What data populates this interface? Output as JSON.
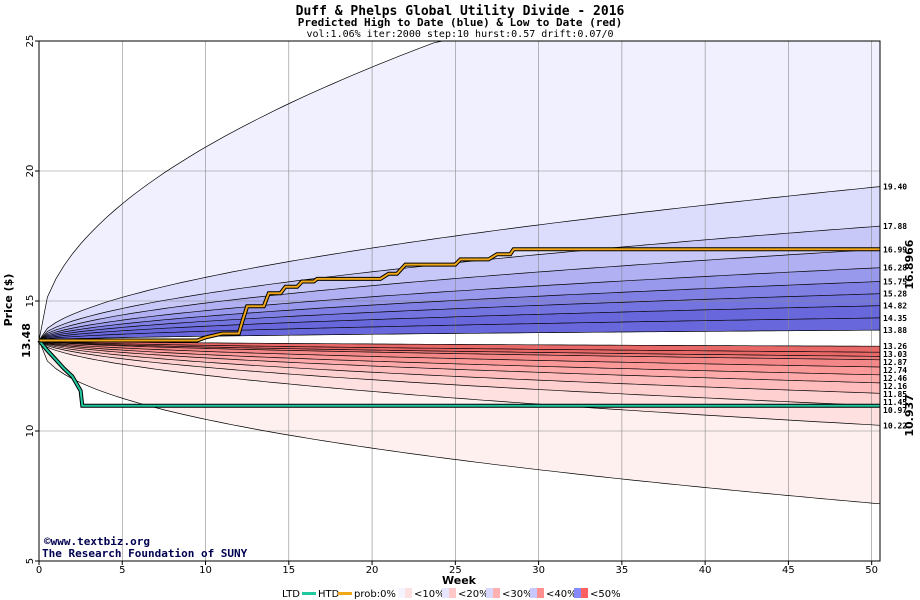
{
  "chart_data": {
    "type": "area",
    "title": "Duff & Phelps Global Utility Divide - 2016",
    "subtitle": "Predicted High to Date (blue) &  Low to Date (red)",
    "params": "vol:1.06% iter:2000 step:10 hurst:0.57 drift:0.07/0",
    "xlabel": "Week",
    "ylabel": "Price ($)",
    "xlim": [
      0,
      50.5
    ],
    "ylim": [
      5,
      25
    ],
    "x_ticks": [
      "0",
      "5",
      "10",
      "15",
      "20",
      "25",
      "30",
      "35",
      "40",
      "45",
      "50"
    ],
    "y_ticks": [
      "5",
      "10",
      "15",
      "20",
      "25"
    ],
    "start_price": 13.48,
    "start_label": "13.48",
    "high_series": [
      {
        "value": 19.4,
        "label": "19.40"
      },
      {
        "value": 17.88,
        "label": "17.88"
      },
      {
        "value": 16.99,
        "label": "16.99"
      },
      {
        "value": 16.28,
        "label": "16.28"
      },
      {
        "value": 15.75,
        "label": "15.75"
      },
      {
        "value": 15.28,
        "label": "15.28"
      },
      {
        "value": 14.82,
        "label": "14.82"
      },
      {
        "value": 14.35,
        "label": "14.35"
      },
      {
        "value": 13.88,
        "label": "13.88"
      }
    ],
    "low_series": [
      {
        "value": 13.26,
        "label": "13.26"
      },
      {
        "value": 13.03,
        "label": "13.03"
      },
      {
        "value": 12.87,
        "label": "12.87"
      },
      {
        "value": 12.74,
        "label": "12.74"
      },
      {
        "value": 12.46,
        "label": "12.46"
      },
      {
        "value": 12.16,
        "label": "12.16"
      },
      {
        "value": 11.85,
        "label": "11.85"
      },
      {
        "value": 11.45,
        "label": "11.45"
      },
      {
        "value": 10.97,
        "label": "10.97"
      },
      {
        "value": 10.22,
        "label": "10.22"
      }
    ],
    "outer_high": {
      "end": 25,
      "reach_week": 24
    },
    "outer_low": {
      "end": 7.2
    },
    "htd_path": [
      [
        0,
        13.48
      ],
      [
        9.5,
        13.48
      ],
      [
        10,
        13.6
      ],
      [
        11,
        13.75
      ],
      [
        12,
        13.75
      ],
      [
        12.2,
        14.2
      ],
      [
        12.5,
        14.8
      ],
      [
        13.5,
        14.8
      ],
      [
        13.8,
        15.3
      ],
      [
        14.5,
        15.3
      ],
      [
        14.8,
        15.55
      ],
      [
        15.5,
        15.55
      ],
      [
        15.8,
        15.75
      ],
      [
        16.5,
        15.75
      ],
      [
        16.7,
        15.85
      ],
      [
        20.5,
        15.85
      ],
      [
        21,
        16.05
      ],
      [
        21.5,
        16.05
      ],
      [
        22,
        16.4
      ],
      [
        25,
        16.4
      ],
      [
        25.3,
        16.6
      ],
      [
        27,
        16.6
      ],
      [
        27.5,
        16.8
      ],
      [
        28.3,
        16.8
      ],
      [
        28.5,
        16.99
      ],
      [
        50.5,
        16.99
      ]
    ],
    "ltd_path": [
      [
        0,
        13.48
      ],
      [
        0.5,
        13.1
      ],
      [
        1,
        12.75
      ],
      [
        1.5,
        12.4
      ],
      [
        2,
        12.1
      ],
      [
        2.5,
        11.55
      ],
      [
        2.6,
        10.97
      ],
      [
        50.5,
        10.97
      ]
    ],
    "htd_value_label": "16.8966",
    "ltd_value_label": "10.937",
    "colors": {
      "htd": "#f0a818",
      "ltd": "#20c8a0",
      "start_label": "#006400",
      "htd_value": "#8b6400",
      "ltd_value": "#008060",
      "blue_bands": [
        "#f0f0ff",
        "#dcdcfc",
        "#c8c8f8",
        "#b0b0f2",
        "#9898ec",
        "#8080e4",
        "#7474e0",
        "#6868dc"
      ],
      "red_bands": [
        "#fff0f0",
        "#ffe0e0",
        "#ffd0d0",
        "#ffbcbc",
        "#ffaaaa",
        "#fb9898",
        "#f48888",
        "#ee7878",
        "#e86868"
      ],
      "grid": "#888888"
    },
    "legend": {
      "ltd": "LTD",
      "htd": "HTD",
      "prob_prefix": "prob:0%",
      "items": [
        "<10%",
        "<20%",
        "<30%",
        "<40%",
        "<50%"
      ]
    },
    "legend_swatches": [
      "#f4f4ff",
      "#e6e6ff",
      "#d8d8ff",
      "#c8c8ff",
      "#8888ff",
      "#ffe0e0",
      "#ffc8c8",
      "#ffb0b0",
      "#ff9090",
      "#ff6060"
    ],
    "watermark": {
      "copyright": "©www.textbiz.org",
      "org": "The Research Foundation of SUNY"
    }
  }
}
